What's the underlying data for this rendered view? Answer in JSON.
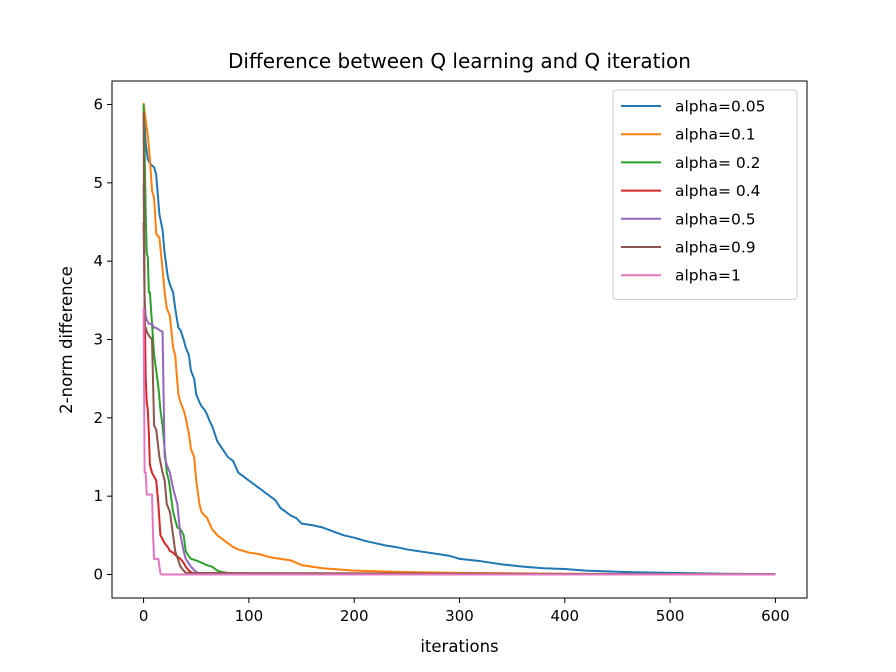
{
  "chart_data": {
    "type": "line",
    "title": "Difference between Q learning and Q iteration",
    "xlabel": "iterations",
    "ylabel": "2-norm difference",
    "xlim": [
      -30,
      630
    ],
    "ylim": [
      -0.3,
      6.3
    ],
    "xticks": [
      0,
      100,
      200,
      300,
      400,
      500,
      600
    ],
    "yticks": [
      0,
      1,
      2,
      3,
      4,
      5,
      6
    ],
    "grid": false,
    "legend": "upper-right",
    "series": [
      {
        "name": "alpha=0.05",
        "color": "#1f77b4",
        "x": [
          0,
          2,
          4,
          6,
          8,
          10,
          12,
          15,
          18,
          20,
          23,
          25,
          28,
          30,
          33,
          35,
          38,
          40,
          43,
          45,
          48,
          50,
          53,
          55,
          58,
          60,
          63,
          65,
          70,
          75,
          80,
          85,
          90,
          95,
          100,
          105,
          110,
          115,
          120,
          125,
          130,
          135,
          140,
          145,
          150,
          160,
          170,
          180,
          190,
          200,
          210,
          220,
          230,
          240,
          250,
          260,
          270,
          280,
          290,
          300,
          320,
          340,
          360,
          380,
          400,
          420,
          440,
          460,
          480,
          500,
          550,
          600
        ],
        "y": [
          6.0,
          5.5,
          5.3,
          5.25,
          5.22,
          5.2,
          5.1,
          4.6,
          4.4,
          4.1,
          3.8,
          3.7,
          3.6,
          3.4,
          3.15,
          3.12,
          3.0,
          2.9,
          2.8,
          2.6,
          2.5,
          2.3,
          2.2,
          2.15,
          2.1,
          2.05,
          1.95,
          1.9,
          1.7,
          1.6,
          1.5,
          1.45,
          1.3,
          1.25,
          1.2,
          1.15,
          1.1,
          1.05,
          1.0,
          0.95,
          0.85,
          0.8,
          0.75,
          0.72,
          0.65,
          0.63,
          0.6,
          0.55,
          0.5,
          0.47,
          0.43,
          0.4,
          0.37,
          0.35,
          0.32,
          0.3,
          0.28,
          0.26,
          0.24,
          0.2,
          0.17,
          0.13,
          0.1,
          0.08,
          0.07,
          0.05,
          0.04,
          0.03,
          0.025,
          0.02,
          0.01,
          0.005
        ]
      },
      {
        "name": "alpha=0.1",
        "color": "#ff7f0e",
        "x": [
          0,
          2,
          4,
          6,
          8,
          10,
          12,
          15,
          18,
          20,
          22,
          25,
          28,
          30,
          33,
          35,
          38,
          40,
          43,
          45,
          48,
          50,
          53,
          55,
          58,
          60,
          65,
          70,
          75,
          80,
          85,
          90,
          100,
          110,
          120,
          130,
          140,
          150,
          170,
          200,
          250,
          300,
          400,
          500,
          600
        ],
        "y": [
          6.02,
          5.8,
          5.6,
          5.3,
          4.9,
          4.8,
          4.35,
          4.3,
          3.9,
          3.6,
          3.4,
          3.3,
          2.9,
          2.8,
          2.3,
          2.2,
          2.1,
          2.0,
          1.8,
          1.6,
          1.5,
          1.2,
          0.9,
          0.8,
          0.75,
          0.73,
          0.58,
          0.5,
          0.45,
          0.4,
          0.35,
          0.32,
          0.28,
          0.26,
          0.22,
          0.2,
          0.18,
          0.12,
          0.08,
          0.05,
          0.03,
          0.02,
          0.01,
          0.005,
          0.002
        ]
      },
      {
        "name": "alpha= 0.2",
        "color": "#2ca02c",
        "x": [
          0,
          1,
          2,
          3,
          4,
          5,
          6,
          8,
          10,
          12,
          14,
          16,
          18,
          20,
          22,
          24,
          26,
          28,
          30,
          32,
          35,
          38,
          40,
          42,
          45,
          50,
          55,
          60,
          65,
          70,
          75,
          80,
          90,
          100,
          150,
          600
        ],
        "y": [
          6.0,
          5.4,
          4.6,
          4.1,
          4.05,
          3.6,
          3.6,
          3.2,
          2.8,
          2.6,
          2.4,
          2.1,
          1.9,
          1.6,
          1.3,
          1.2,
          1.0,
          0.8,
          0.7,
          0.6,
          0.58,
          0.5,
          0.3,
          0.25,
          0.2,
          0.18,
          0.15,
          0.12,
          0.1,
          0.05,
          0.03,
          0.02,
          0.01,
          0.005,
          0.002,
          0.001
        ]
      },
      {
        "name": "alpha= 0.4",
        "color": "#d62728",
        "x": [
          0,
          1,
          2,
          3,
          4,
          5,
          6,
          8,
          10,
          12,
          14,
          16,
          18,
          20,
          23,
          25,
          28,
          30,
          33,
          35,
          38,
          40,
          43,
          45,
          50,
          55,
          60,
          600
        ],
        "y": [
          4.5,
          3.5,
          2.5,
          2.2,
          2.1,
          1.8,
          1.4,
          1.3,
          1.25,
          1.2,
          0.9,
          0.5,
          0.45,
          0.4,
          0.35,
          0.3,
          0.28,
          0.25,
          0.22,
          0.2,
          0.15,
          0.1,
          0.05,
          0.03,
          0.01,
          0.005,
          0.002,
          0.001
        ]
      },
      {
        "name": "alpha=0.5",
        "color": "#9467bd",
        "x": [
          0,
          1,
          2,
          3,
          5,
          8,
          10,
          12,
          15,
          18,
          20,
          22,
          25,
          28,
          30,
          32,
          35,
          38,
          40,
          45,
          50,
          55,
          600
        ],
        "y": [
          5.0,
          3.5,
          3.3,
          3.25,
          3.2,
          3.2,
          3.15,
          3.15,
          3.12,
          3.1,
          1.5,
          1.4,
          1.3,
          1.1,
          1.0,
          0.9,
          0.5,
          0.3,
          0.2,
          0.1,
          0.03,
          0.01,
          0.001
        ]
      },
      {
        "name": "alpha=0.9",
        "color": "#8c564b",
        "x": [
          0,
          1,
          2,
          3,
          5,
          8,
          10,
          12,
          15,
          18,
          20,
          22,
          25,
          28,
          30,
          35,
          40,
          600
        ],
        "y": [
          5.9,
          3.2,
          3.15,
          3.1,
          3.05,
          3.0,
          1.9,
          1.85,
          1.5,
          1.3,
          1.2,
          0.9,
          0.8,
          0.5,
          0.3,
          0.1,
          0.02,
          0.001
        ]
      },
      {
        "name": "alpha=1",
        "color": "#e377c2",
        "x": [
          0,
          1,
          2,
          3,
          5,
          8,
          9,
          10,
          12,
          14,
          16,
          17,
          600
        ],
        "y": [
          3.4,
          1.3,
          1.3,
          1.02,
          1.02,
          1.02,
          0.5,
          0.2,
          0.2,
          0.2,
          0.01,
          0.0,
          0.0
        ]
      }
    ]
  }
}
